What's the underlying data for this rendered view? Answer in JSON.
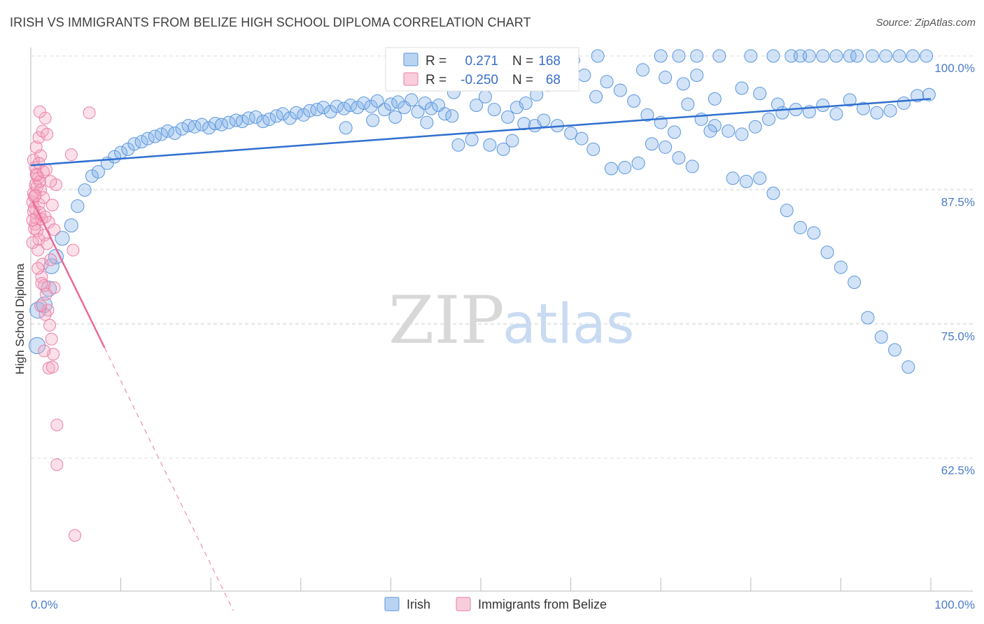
{
  "title": "IRISH VS IMMIGRANTS FROM BELIZE HIGH SCHOOL DIPLOMA CORRELATION CHART",
  "source": "Source: ZipAtlas.com",
  "watermark": {
    "zip": "ZIP",
    "atlas": "atlas"
  },
  "stats": [
    {
      "r_label": "R =",
      "r_value": "0.271",
      "n_label": "N =",
      "n_value": "168",
      "color": "#7fb0e8"
    },
    {
      "r_label": "R =",
      "r_value": "-0.250",
      "n_label": "N =",
      "n_value": "68",
      "color": "#f4a6c0"
    }
  ],
  "chart_data": {
    "type": "scatter",
    "title": "IRISH VS IMMIGRANTS FROM BELIZE HIGH SCHOOL DIPLOMA CORRELATION CHART",
    "xlabel": "",
    "ylabel": "High School Diploma",
    "xlim": [
      0,
      100
    ],
    "ylim": [
      52,
      102
    ],
    "x_tick_labels": [
      "0.0%",
      "100.0%"
    ],
    "y_ticks": [
      62.5,
      75.0,
      87.5,
      100.0
    ],
    "y_tick_labels": [
      "62.5%",
      "75.0%",
      "87.5%",
      "100.0%"
    ],
    "grid": true,
    "legend_position": "bottom",
    "series": [
      {
        "name": "Irish",
        "color": "#7fb0e8",
        "trendline": {
          "x": [
            0,
            100
          ],
          "y": [
            89.8,
            96.0
          ]
        },
        "points": [
          [
            0.7,
            73.0
          ],
          [
            0.8,
            76.3
          ],
          [
            1.5,
            76.8
          ],
          [
            2.0,
            78.3
          ],
          [
            2.3,
            80.4
          ],
          [
            2.8,
            81.3
          ],
          [
            3.5,
            83.0
          ],
          [
            4.5,
            84.2
          ],
          [
            5.2,
            86.0
          ],
          [
            6.0,
            87.5
          ],
          [
            6.8,
            88.8
          ],
          [
            7.5,
            89.2
          ],
          [
            8.5,
            90.0
          ],
          [
            9.3,
            90.6
          ],
          [
            10.0,
            91.0
          ],
          [
            10.8,
            91.3
          ],
          [
            11.5,
            91.8
          ],
          [
            12.3,
            92.0
          ],
          [
            13.0,
            92.3
          ],
          [
            13.8,
            92.5
          ],
          [
            14.5,
            92.7
          ],
          [
            15.2,
            93.0
          ],
          [
            16.0,
            92.8
          ],
          [
            16.8,
            93.2
          ],
          [
            17.5,
            93.5
          ],
          [
            18.2,
            93.4
          ],
          [
            19.0,
            93.6
          ],
          [
            19.8,
            93.3
          ],
          [
            20.5,
            93.7
          ],
          [
            21.2,
            93.6
          ],
          [
            22.0,
            93.8
          ],
          [
            22.8,
            94.0
          ],
          [
            23.5,
            93.9
          ],
          [
            24.2,
            94.2
          ],
          [
            25.0,
            94.3
          ],
          [
            25.8,
            93.9
          ],
          [
            26.5,
            94.1
          ],
          [
            27.3,
            94.4
          ],
          [
            28.0,
            94.6
          ],
          [
            28.8,
            94.2
          ],
          [
            29.5,
            94.7
          ],
          [
            30.3,
            94.5
          ],
          [
            31.0,
            94.9
          ],
          [
            31.8,
            95.0
          ],
          [
            32.5,
            95.2
          ],
          [
            33.3,
            94.8
          ],
          [
            34.0,
            95.3
          ],
          [
            34.8,
            95.1
          ],
          [
            35.5,
            95.4
          ],
          [
            36.3,
            95.2
          ],
          [
            37.0,
            95.6
          ],
          [
            37.8,
            95.3
          ],
          [
            38.5,
            95.8
          ],
          [
            39.3,
            95.0
          ],
          [
            40.0,
            95.5
          ],
          [
            40.8,
            95.7
          ],
          [
            41.5,
            95.2
          ],
          [
            42.3,
            95.9
          ],
          [
            43.0,
            94.8
          ],
          [
            43.8,
            95.6
          ],
          [
            44.5,
            95.1
          ],
          [
            45.3,
            95.4
          ],
          [
            46.0,
            94.6
          ],
          [
            47.0,
            96.6
          ],
          [
            48.5,
            97.5
          ],
          [
            49.5,
            95.4
          ],
          [
            50.5,
            96.2
          ],
          [
            51.5,
            95.0
          ],
          [
            53.0,
            94.3
          ],
          [
            54.0,
            95.2
          ],
          [
            55.0,
            95.6
          ],
          [
            56.2,
            96.4
          ],
          [
            57.5,
            97.3
          ],
          [
            58.8,
            98.8
          ],
          [
            60.3,
            99.6
          ],
          [
            61.5,
            98.2
          ],
          [
            62.8,
            96.2
          ],
          [
            64.0,
            97.6
          ],
          [
            65.5,
            96.8
          ],
          [
            67.0,
            95.8
          ],
          [
            68.5,
            94.5
          ],
          [
            70.0,
            93.8
          ],
          [
            71.5,
            92.9
          ],
          [
            73.0,
            95.5
          ],
          [
            74.5,
            94.1
          ],
          [
            76.0,
            93.5
          ],
          [
            77.5,
            93.0
          ],
          [
            79.0,
            92.7
          ],
          [
            80.5,
            93.4
          ],
          [
            82.0,
            94.1
          ],
          [
            83.5,
            94.7
          ],
          [
            85.0,
            95.0
          ],
          [
            86.5,
            94.8
          ],
          [
            88.0,
            95.4
          ],
          [
            89.5,
            94.6
          ],
          [
            91.0,
            95.9
          ],
          [
            92.5,
            95.1
          ],
          [
            94.0,
            94.7
          ],
          [
            95.5,
            94.9
          ],
          [
            97.0,
            95.6
          ],
          [
            98.5,
            96.3
          ],
          [
            99.8,
            96.4
          ],
          [
            35.0,
            93.3
          ],
          [
            38.0,
            94.0
          ],
          [
            40.5,
            94.3
          ],
          [
            44.0,
            93.8
          ],
          [
            46.8,
            94.4
          ],
          [
            47.5,
            91.7
          ],
          [
            49.0,
            92.2
          ],
          [
            51.0,
            91.7
          ],
          [
            52.5,
            91.3
          ],
          [
            53.5,
            92.1
          ],
          [
            54.8,
            93.7
          ],
          [
            56.0,
            93.5
          ],
          [
            57.0,
            94.0
          ],
          [
            58.5,
            93.5
          ],
          [
            60.0,
            92.8
          ],
          [
            61.2,
            92.3
          ],
          [
            62.5,
            91.3
          ],
          [
            64.5,
            89.5
          ],
          [
            66.0,
            89.6
          ],
          [
            67.5,
            90.0
          ],
          [
            69.0,
            91.8
          ],
          [
            70.5,
            91.5
          ],
          [
            72.0,
            90.5
          ],
          [
            73.5,
            89.7
          ],
          [
            75.5,
            93.0
          ],
          [
            78.0,
            88.6
          ],
          [
            79.5,
            88.3
          ],
          [
            81.0,
            88.6
          ],
          [
            82.5,
            87.2
          ],
          [
            84.0,
            85.6
          ],
          [
            85.5,
            84.0
          ],
          [
            87.0,
            83.5
          ],
          [
            88.5,
            81.7
          ],
          [
            90.0,
            80.3
          ],
          [
            91.5,
            78.9
          ],
          [
            93.0,
            75.6
          ],
          [
            94.5,
            73.8
          ],
          [
            96.0,
            72.6
          ],
          [
            97.5,
            71.0
          ],
          [
            63.0,
            100.0
          ],
          [
            70.0,
            100.0
          ],
          [
            72.0,
            100.0
          ],
          [
            74.0,
            100.0
          ],
          [
            76.5,
            100.0
          ],
          [
            80.0,
            100.0
          ],
          [
            82.5,
            100.0
          ],
          [
            84.5,
            100.0
          ],
          [
            85.5,
            100.0
          ],
          [
            86.5,
            100.0
          ],
          [
            88.0,
            100.0
          ],
          [
            89.5,
            100.0
          ],
          [
            91.0,
            100.0
          ],
          [
            91.8,
            100.0
          ],
          [
            93.5,
            100.0
          ],
          [
            95.0,
            100.0
          ],
          [
            96.5,
            100.0
          ],
          [
            98.0,
            100.0
          ],
          [
            99.5,
            100.0
          ],
          [
            68.0,
            98.7
          ],
          [
            70.5,
            98.0
          ],
          [
            72.5,
            97.4
          ],
          [
            74.0,
            98.2
          ],
          [
            76.0,
            96.0
          ],
          [
            79.0,
            97.0
          ],
          [
            81.0,
            96.5
          ],
          [
            83.0,
            95.5
          ]
        ]
      },
      {
        "name": "Immigrants from Belize",
        "color": "#f4a6c0",
        "trendline": {
          "x": [
            0.2,
            8.2
          ],
          "y": [
            86.5,
            72.8
          ],
          "dashed_extension": {
            "x": [
              8.2,
              22.5
            ],
            "y": [
              72.8,
              48.3
            ]
          }
        },
        "points": [
          [
            0.2,
            86.4
          ],
          [
            0.3,
            87.2
          ],
          [
            0.4,
            85.8
          ],
          [
            0.5,
            88.0
          ],
          [
            0.6,
            84.9
          ],
          [
            0.4,
            86.9
          ],
          [
            0.7,
            87.8
          ],
          [
            0.3,
            85.5
          ],
          [
            0.8,
            88.6
          ],
          [
            0.5,
            84.3
          ],
          [
            0.9,
            86.2
          ],
          [
            0.6,
            89.0
          ],
          [
            1.0,
            85.4
          ],
          [
            0.7,
            83.7
          ],
          [
            1.1,
            87.5
          ],
          [
            0.9,
            82.9
          ],
          [
            1.2,
            84.8
          ],
          [
            1.0,
            88.3
          ],
          [
            1.4,
            86.8
          ],
          [
            0.8,
            81.9
          ],
          [
            1.5,
            83.3
          ],
          [
            1.3,
            80.6
          ],
          [
            1.6,
            85.0
          ],
          [
            1.2,
            79.4
          ],
          [
            1.8,
            82.5
          ],
          [
            1.5,
            78.6
          ],
          [
            2.0,
            84.5
          ],
          [
            1.7,
            77.8
          ],
          [
            2.2,
            81.0
          ],
          [
            1.9,
            76.3
          ],
          [
            2.4,
            86.1
          ],
          [
            2.1,
            74.9
          ],
          [
            2.6,
            83.8
          ],
          [
            2.3,
            73.6
          ],
          [
            2.8,
            88.0
          ],
          [
            2.5,
            72.2
          ],
          [
            0.3,
            90.3
          ],
          [
            0.6,
            91.5
          ],
          [
            0.9,
            92.4
          ],
          [
            1.3,
            93.0
          ],
          [
            1.6,
            94.2
          ],
          [
            1.0,
            94.8
          ],
          [
            0.5,
            89.6
          ],
          [
            0.7,
            88.9
          ],
          [
            1.1,
            90.7
          ],
          [
            1.4,
            89.2
          ],
          [
            1.8,
            92.7
          ],
          [
            2.2,
            88.3
          ],
          [
            4.5,
            90.8
          ],
          [
            6.5,
            94.7
          ],
          [
            4.7,
            81.9
          ],
          [
            2.0,
            70.9
          ],
          [
            2.9,
            65.6
          ],
          [
            2.9,
            61.9
          ],
          [
            4.9,
            55.3
          ],
          [
            1.5,
            72.5
          ],
          [
            2.4,
            71.0
          ],
          [
            0.8,
            80.2
          ],
          [
            1.2,
            78.8
          ],
          [
            1.6,
            75.9
          ],
          [
            0.4,
            83.9
          ],
          [
            0.2,
            84.7
          ],
          [
            0.5,
            87.0
          ],
          [
            0.9,
            90.0
          ],
          [
            1.7,
            89.4
          ],
          [
            2.6,
            78.4
          ],
          [
            0.2,
            82.6
          ],
          [
            1.1,
            76.7
          ]
        ]
      }
    ]
  },
  "legend": [
    {
      "label": "Irish",
      "color": "#7fb0e8"
    },
    {
      "label": "Immigrants from Belize",
      "color": "#f4a6c0"
    }
  ]
}
